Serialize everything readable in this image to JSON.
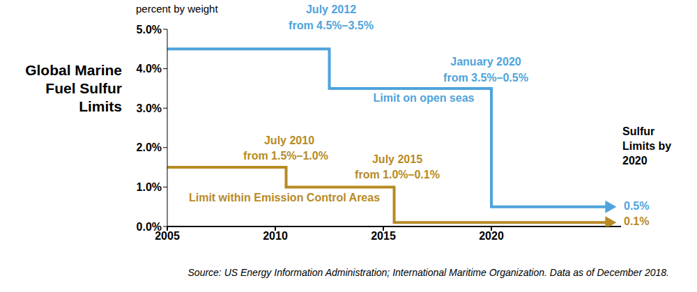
{
  "chart_data": {
    "type": "line",
    "title": "Global Marine Fuel Sulfur Limits",
    "y_label": "percent by weight",
    "source": "Source: US Energy Information Administration; International Maritime Organization. Data as of December 2018.",
    "line_style": "step",
    "grid": false,
    "xlim": [
      2005,
      2026
    ],
    "xticks": [
      2005,
      2010,
      2015,
      2020
    ],
    "ylim": [
      0,
      5
    ],
    "yticks": [
      {
        "value": 0,
        "label": "0.0%"
      },
      {
        "value": 1,
        "label": "1.0%"
      },
      {
        "value": 2,
        "label": "2.0%"
      },
      {
        "value": 3,
        "label": "3.0%"
      },
      {
        "value": 4,
        "label": "4.0%"
      },
      {
        "value": 5,
        "label": "5.0%"
      }
    ],
    "series": [
      {
        "name": "Limit on open seas",
        "color": "#4ea3dc",
        "x": [
          2005,
          2012.5,
          2020,
          2025.4
        ],
        "values": [
          4.5,
          3.5,
          0.5,
          0.5
        ]
      },
      {
        "name": "Limit within Emission Control Areas",
        "color": "#b78a25",
        "x": [
          2005,
          2010.5,
          2015.5,
          2025.4
        ],
        "values": [
          1.5,
          1.0,
          0.1,
          0.1
        ]
      }
    ],
    "annotations": [
      "July 2012",
      "from 4.5%–3.5%",
      "January 2020",
      "from 3.5%–0.5%",
      "July 2010",
      "from 1.5%–1.0%",
      "July 2015",
      "from 1.0%–0.1%",
      "Sulfur Limits by 2020",
      "0.5%",
      "0.1%"
    ]
  }
}
